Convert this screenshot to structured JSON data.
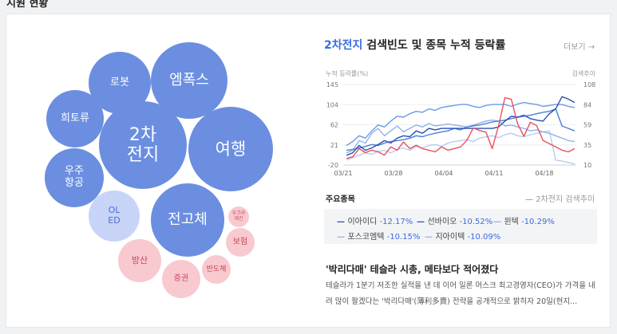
{
  "page": {
    "title": "지원 현황"
  },
  "bubbles": [
    {
      "label": "로봇",
      "color": "blue"
    },
    {
      "label": "엠폭스",
      "color": "blue"
    },
    {
      "label": "희토류",
      "color": "blue"
    },
    {
      "label": "2차\n전지",
      "color": "blue"
    },
    {
      "label": "여행",
      "color": "blue"
    },
    {
      "label": "우주\n항공",
      "color": "blue"
    },
    {
      "label": "OL\nED",
      "color": "light-blue"
    },
    {
      "label": "전고체",
      "color": "blue"
    },
    {
      "label": "우크라\n재건",
      "color": "pink"
    },
    {
      "label": "보험",
      "color": "pink"
    },
    {
      "label": "방산",
      "color": "pink"
    },
    {
      "label": "반도체",
      "color": "pink"
    },
    {
      "label": "증권",
      "color": "pink"
    }
  ],
  "panel": {
    "title_highlight": "2차전지",
    "title_rest": " 검색빈도 및 종목 누적 등락률",
    "more": "더보기 →"
  },
  "chart_data": {
    "type": "line",
    "ylabel_left": "누적 등락률(%)",
    "ylabel_right": "검색추이",
    "yticks_left": [
      "145",
      "104",
      "62",
      "21",
      "-20"
    ],
    "yticks_right": [
      "108",
      "84",
      "59",
      "35",
      "10"
    ],
    "ylim_left": [
      -20,
      145
    ],
    "ylim_right": [
      10,
      108
    ],
    "xticks": [
      "03/21",
      "03/28",
      "04/04",
      "04/11",
      "04/18"
    ],
    "series": [
      {
        "name": "2차전지 검색추이",
        "axis": "right",
        "color": "#e8505b",
        "values": [
          18,
          20,
          30,
          25,
          28,
          26,
          22,
          32,
          28,
          38,
          30,
          34,
          30,
          28,
          26,
          32,
          28,
          30,
          32,
          40,
          55,
          52,
          50,
          30,
          58,
          92,
          90,
          60,
          45,
          62,
          58,
          40,
          36,
          32,
          28,
          26,
          30
        ]
      },
      {
        "name": "이아이디",
        "axis": "left",
        "color": "#2a4fb0",
        "values": [
          0,
          5,
          20,
          10,
          15,
          22,
          30,
          25,
          35,
          40,
          38,
          50,
          45,
          55,
          52,
          55,
          55,
          55,
          55,
          55,
          55,
          55,
          55,
          55,
          58,
          70,
          80,
          78,
          82,
          75,
          72,
          70,
          85,
          95,
          120,
          115,
          108
        ]
      },
      {
        "name": "선바이오",
        "axis": "left",
        "color": "#4a7fd8",
        "values": [
          10,
          12,
          15,
          18,
          22,
          20,
          25,
          28,
          30,
          32,
          35,
          40,
          38,
          42,
          45,
          48,
          50,
          55,
          52,
          58,
          60,
          62,
          65,
          68,
          70,
          72,
          75,
          78,
          80,
          82,
          85,
          88,
          90,
          95,
          60,
          55,
          50
        ]
      },
      {
        "name": "윈텍",
        "axis": "left",
        "color": "#6b9be6",
        "values": [
          20,
          28,
          40,
          35,
          50,
          62,
          58,
          70,
          80,
          78,
          85,
          90,
          88,
          95,
          92,
          98,
          100,
          102,
          104,
          104,
          100,
          98,
          102,
          104,
          104,
          104,
          100,
          105,
          108,
          106,
          104,
          100,
          102,
          104,
          104,
          100,
          98
        ]
      },
      {
        "name": "포스코엠텍",
        "axis": "left",
        "color": "#8fb3ea",
        "values": [
          5,
          10,
          30,
          25,
          45,
          55,
          40,
          50,
          60,
          48,
          55,
          62,
          58,
          65,
          60,
          62,
          64,
          62,
          60,
          58,
          62,
          66,
          70,
          72,
          70,
          60,
          62,
          58,
          55,
          50,
          52,
          48,
          45,
          40,
          35,
          30,
          28
        ]
      },
      {
        "name": "지아이텍",
        "axis": "left",
        "color": "#b7ccf0",
        "values": [
          -10,
          -5,
          0,
          5,
          2,
          8,
          10,
          5,
          12,
          15,
          10,
          18,
          15,
          20,
          22,
          18,
          25,
          28,
          30,
          32,
          28,
          35,
          38,
          40,
          36,
          42,
          45,
          40,
          38,
          42,
          45,
          48,
          50,
          -10,
          -12,
          -15,
          -18
        ]
      }
    ]
  },
  "stocks": {
    "title": "주요종목",
    "legend": "2차전지 검색추이",
    "items": [
      {
        "name": "이아이디",
        "pct": "-12.17%",
        "shade": "dark"
      },
      {
        "name": "선바이오",
        "pct": "-10.52%",
        "shade": "dark"
      },
      {
        "name": "윈텍",
        "pct": "-10.29%",
        "shade": "light"
      },
      {
        "name": "포스코엠텍",
        "pct": "-10.15%",
        "shade": "light"
      },
      {
        "name": "지아이텍",
        "pct": "-10.09%",
        "shade": "light"
      }
    ]
  },
  "news": {
    "title": "'박리다매' 테슬라 시총, 메타보다 적어졌다",
    "body": "테슬라가 1분기 저조한 실적을 낸 데 이어 일론 머스크 최고경영자(CEO)가 가격을 내려 많이 팔겠다는 '박리다매'(薄利多賣) 전략을 공개적으로 밝히자 20일(현지..."
  }
}
